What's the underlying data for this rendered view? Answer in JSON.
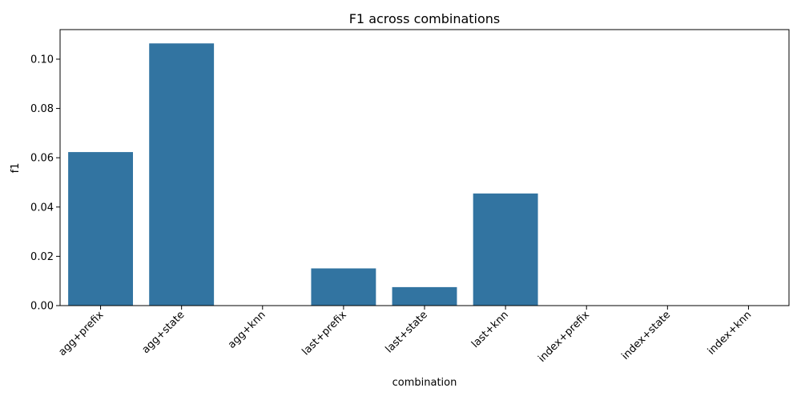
{
  "chart_data": {
    "type": "bar",
    "title": "F1 across combinations",
    "xlabel": "combination",
    "ylabel": "f1",
    "categories": [
      "agg+prefix",
      "agg+state",
      "agg+knn",
      "last+prefix",
      "last+state",
      "last+knn",
      "index+prefix",
      "index+state",
      "index+knn"
    ],
    "values": [
      0.0623,
      0.1064,
      0.0,
      0.0151,
      0.0075,
      0.0455,
      0.0,
      0.0,
      0.0
    ],
    "ylim": [
      0,
      0.112
    ],
    "yticks": [
      0.0,
      0.02,
      0.04,
      0.06,
      0.08,
      0.1
    ],
    "ytick_labels": [
      "0.00",
      "0.02",
      "0.04",
      "0.06",
      "0.08",
      "0.10"
    ],
    "bar_color": "#3274a1",
    "grid": false,
    "legend": "none"
  }
}
